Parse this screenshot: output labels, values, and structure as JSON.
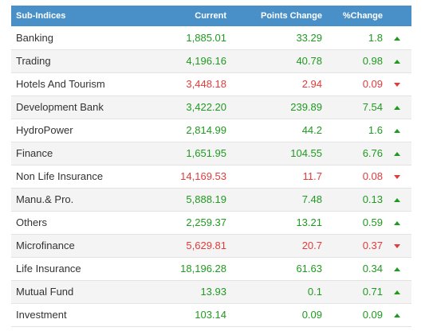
{
  "header": {
    "name": "Sub-Indices",
    "current": "Current",
    "points_change": "Points Change",
    "pct_change": "%Change"
  },
  "colors": {
    "header_bg": "#4a90c8",
    "positive": "#1f9a1f",
    "negative": "#e23b3b"
  },
  "rows": [
    {
      "name": "Banking",
      "current": "1,885.01",
      "points": "33.29",
      "pct": "1.8",
      "dir": "up"
    },
    {
      "name": "Trading",
      "current": "4,196.16",
      "points": "40.78",
      "pct": "0.98",
      "dir": "up"
    },
    {
      "name": "Hotels And Tourism",
      "current": "3,448.18",
      "points": "2.94",
      "pct": "0.09",
      "dir": "down"
    },
    {
      "name": "Development Bank",
      "current": "3,422.20",
      "points": "239.89",
      "pct": "7.54",
      "dir": "up"
    },
    {
      "name": "HydroPower",
      "current": "2,814.99",
      "points": "44.2",
      "pct": "1.6",
      "dir": "up"
    },
    {
      "name": "Finance",
      "current": "1,651.95",
      "points": "104.55",
      "pct": "6.76",
      "dir": "up"
    },
    {
      "name": "Non Life Insurance",
      "current": "14,169.53",
      "points": "11.7",
      "pct": "0.08",
      "dir": "down"
    },
    {
      "name": "Manu.& Pro.",
      "current": "5,888.19",
      "points": "7.48",
      "pct": "0.13",
      "dir": "up"
    },
    {
      "name": "Others",
      "current": "2,259.37",
      "points": "13.21",
      "pct": "0.59",
      "dir": "up"
    },
    {
      "name": "Microfinance",
      "current": "5,629.81",
      "points": "20.7",
      "pct": "0.37",
      "dir": "down"
    },
    {
      "name": "Life Insurance",
      "current": "18,196.28",
      "points": "61.63",
      "pct": "0.34",
      "dir": "up"
    },
    {
      "name": "Mutual Fund",
      "current": "13.93",
      "points": "0.1",
      "pct": "0.71",
      "dir": "up"
    },
    {
      "name": "Investment",
      "current": "103.14",
      "points": "0.09",
      "pct": "0.09",
      "dir": "up"
    }
  ]
}
